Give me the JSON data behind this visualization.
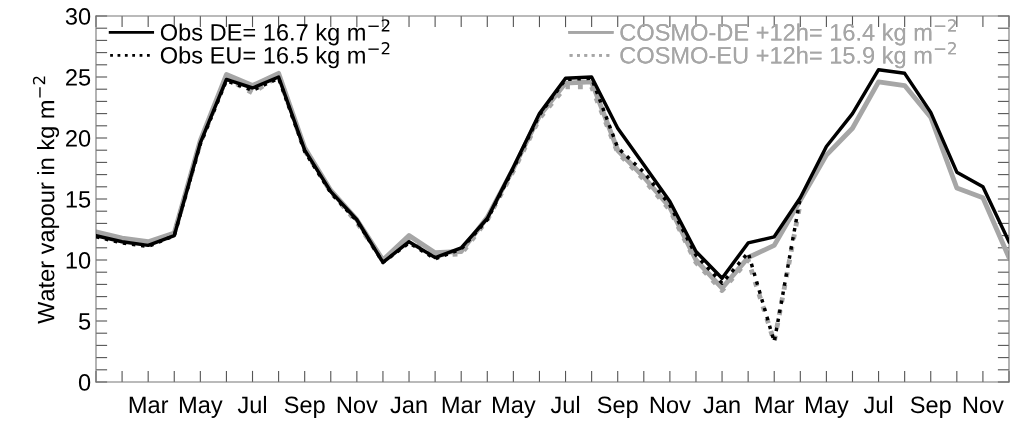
{
  "chart_data": {
    "type": "line",
    "ylabel": "Water vapour in kg m$^{−2}$",
    "categories": [
      null,
      null,
      "Mar",
      null,
      "May",
      null,
      "Jul",
      null,
      "Sep",
      null,
      "Nov",
      null,
      "Jan",
      null,
      "Mar",
      null,
      "May",
      null,
      "Jul",
      null,
      "Sep",
      null,
      "Nov",
      null,
      "Jan",
      null,
      "Mar",
      null,
      "May",
      null,
      "Jul",
      null,
      "Sep",
      null,
      "Nov",
      null
    ],
    "ylim": [
      0,
      30
    ],
    "yticks": [
      0,
      {
        "value": 1,
        "label": null
      },
      {
        "value": 2,
        "label": null
      },
      {
        "value": 3,
        "label": null
      },
      {
        "value": 4,
        "label": null
      },
      5,
      {
        "value": 6,
        "label": null
      },
      {
        "value": 7,
        "label": null
      },
      {
        "value": 8,
        "label": null
      },
      {
        "value": 9,
        "label": null
      },
      10,
      {
        "value": 11,
        "label": null
      },
      {
        "value": 12,
        "label": null
      },
      {
        "value": 13,
        "label": null
      },
      {
        "value": 14,
        "label": null
      },
      15,
      {
        "value": 16,
        "label": null
      },
      {
        "value": 17,
        "label": null
      },
      {
        "value": 18,
        "label": null
      },
      {
        "value": 19,
        "label": null
      },
      20,
      {
        "value": 21,
        "label": null
      },
      {
        "value": 22,
        "label": null
      },
      {
        "value": 23,
        "label": null
      },
      {
        "value": 24,
        "label": null
      },
      25,
      {
        "value": 26,
        "label": null
      },
      {
        "value": 27,
        "label": null
      },
      {
        "value": 28,
        "label": null
      },
      {
        "value": 29,
        "label": null
      },
      30
    ],
    "legend": "top",
    "grid": false,
    "series": [
      {
        "name": "Obs DE= 16.7 kg m$^{−2}$",
        "color": "#000000",
        "line_style": "solid",
        "values": [
          12.0,
          11.5,
          11.2,
          12.0,
          19.6,
          24.8,
          24.1,
          25.0,
          19.0,
          15.6,
          13.3,
          9.8,
          11.5,
          10.2,
          11.0,
          13.4,
          17.6,
          22.0,
          24.9,
          25.0,
          20.8,
          17.8,
          14.8,
          10.7,
          8.5,
          11.4,
          11.9,
          15.1,
          19.3,
          22.0,
          25.6,
          25.3,
          22.1,
          17.2,
          16.0,
          11.5
        ]
      },
      {
        "name": "Obs EU= 16.5 kg m$^{−2}$",
        "color": "#000000",
        "line_style": "dotted",
        "values": [
          11.9,
          11.4,
          11.1,
          12.0,
          19.5,
          24.7,
          23.9,
          24.9,
          18.9,
          15.5,
          13.2,
          9.8,
          11.4,
          10.1,
          10.9,
          13.3,
          17.5,
          21.9,
          24.8,
          24.9,
          19.2,
          17.2,
          14.5,
          10.4,
          8.1,
          10.6,
          3.3,
          15.1,
          null,
          null,
          null,
          null,
          null,
          null,
          null,
          null
        ]
      },
      {
        "name": "COSMO-DE +12h= 16.4 kg m$^{−2}$",
        "color": "#a6a6a6",
        "line_style": "solid",
        "values": [
          12.3,
          11.8,
          11.5,
          12.2,
          19.8,
          25.2,
          24.3,
          25.3,
          19.2,
          15.7,
          13.3,
          10.0,
          12.0,
          10.6,
          10.7,
          13.5,
          17.5,
          21.8,
          24.5,
          24.6,
          19.0,
          16.8,
          14.3,
          10.0,
          7.7,
          10.2,
          11.2,
          14.9,
          18.6,
          20.8,
          24.6,
          24.3,
          21.7,
          15.9,
          15.1,
          10.2
        ]
      },
      {
        "name": "COSMO-EU +12h= 15.9 kg m$^{−2}$",
        "color": "#a6a6a6",
        "line_style": "dotted",
        "values": [
          12.1,
          11.6,
          11.3,
          12.1,
          19.6,
          24.9,
          23.7,
          25.1,
          19.0,
          15.6,
          13.1,
          9.9,
          11.8,
          10.4,
          10.5,
          13.3,
          17.3,
          21.6,
          24.2,
          24.2,
          18.8,
          16.6,
          14.1,
          9.8,
          7.5,
          10.0,
          3.3,
          14.7,
          null,
          null,
          null,
          null,
          null,
          null,
          null,
          null
        ]
      }
    ]
  }
}
